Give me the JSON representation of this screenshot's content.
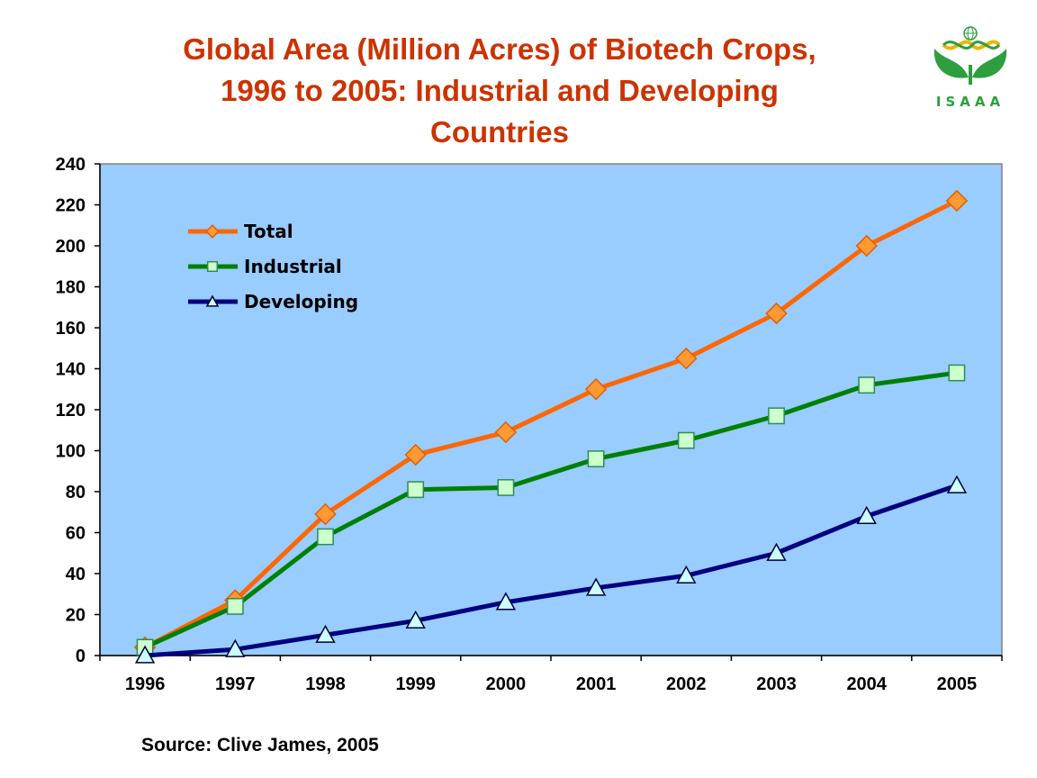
{
  "header": {
    "title_lines": [
      "Global Area (Million Acres) of Biotech Crops,",
      "1996 to 2005: Industrial and Developing",
      "Countries"
    ]
  },
  "logo": {
    "text": "ISAAA"
  },
  "footer": {
    "source": "Source: Clive James, 2005"
  },
  "chart_data": {
    "type": "line",
    "title": "Global Area (Million Acres) of Biotech Crops, 1996 to 2005: Industrial and Developing Countries",
    "xlabel": "",
    "ylabel": "",
    "categories": [
      "1996",
      "1997",
      "1998",
      "1999",
      "2000",
      "2001",
      "2002",
      "2003",
      "2004",
      "2005"
    ],
    "ylim": [
      0,
      240
    ],
    "yticks": [
      0,
      20,
      40,
      60,
      80,
      100,
      120,
      140,
      160,
      180,
      200,
      220,
      240
    ],
    "grid": false,
    "legend_position": "top-left",
    "plot_background": "#99ccff",
    "series": [
      {
        "name": "Total",
        "color": "#ff6600",
        "marker": "diamond",
        "marker_fill": "#ff9933",
        "values": [
          4,
          27,
          69,
          98,
          109,
          130,
          145,
          167,
          200,
          222
        ]
      },
      {
        "name": "Industrial",
        "color": "#008000",
        "marker": "square",
        "marker_fill": "#ccffcc",
        "values": [
          4,
          24,
          58,
          81,
          82,
          96,
          105,
          117,
          132,
          138
        ]
      },
      {
        "name": "Developing",
        "color": "#000080",
        "marker": "triangle",
        "marker_fill": "#ccffff",
        "values": [
          0,
          3,
          10,
          17,
          26,
          33,
          39,
          50,
          68,
          83
        ]
      }
    ]
  }
}
